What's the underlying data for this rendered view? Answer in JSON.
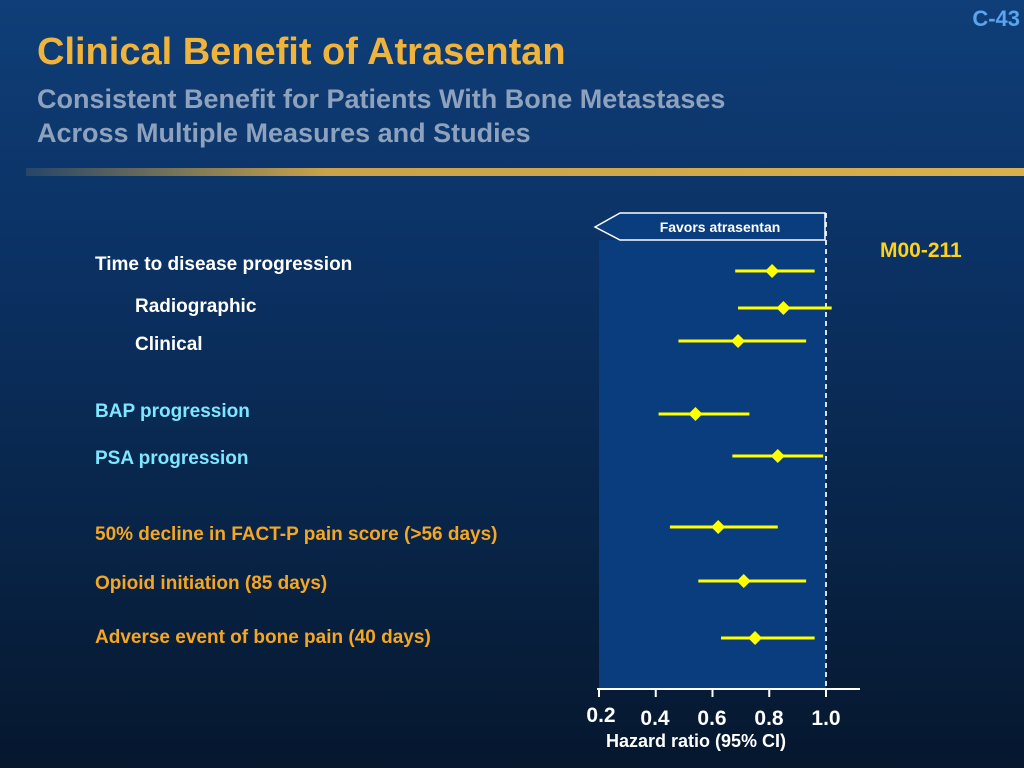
{
  "slide_number": "C-43",
  "title": "Clinical Benefit of Atrasentan",
  "subtitle_line1": "Consistent Benefit for Patients With Bone Metastases",
  "subtitle_line2": "Across Multiple Measures and Studies",
  "study_label": "M00-211",
  "favors_label": "Favors atrasentan",
  "colors": {
    "title": "#f0b43c",
    "subtitle": "#8ea2bd",
    "marker": "#ffff00",
    "study_label": "#ffd21a",
    "plot_panel": "#0a3d7e",
    "group_time_to_progression": "#ffffff",
    "group_biomarker": "#7fe6ff",
    "group_symptom": "#f5a623"
  },
  "chart_data": {
    "type": "forest",
    "title": "",
    "xlabel": "Hazard ratio (95% CI)",
    "xlim": [
      0.2,
      1.1
    ],
    "xticks": [
      0.2,
      0.4,
      0.6,
      0.8,
      1.0
    ],
    "xtick_labels": [
      "0.2",
      "0.4",
      "0.6",
      "0.8",
      "1.0"
    ],
    "reference_line": 1.0,
    "rows": [
      {
        "label": "Time to disease progression",
        "group": "time_to_progression",
        "hr": 0.81,
        "lower": 0.68,
        "upper": 0.96
      },
      {
        "label": "Radiographic",
        "group": "time_to_progression",
        "hr": 0.85,
        "lower": 0.69,
        "upper": 1.02
      },
      {
        "label": "Clinical",
        "group": "time_to_progression",
        "hr": 0.69,
        "lower": 0.48,
        "upper": 0.93
      },
      {
        "label": "BAP progression",
        "group": "biomarker",
        "hr": 0.54,
        "lower": 0.41,
        "upper": 0.73
      },
      {
        "label": "PSA progression",
        "group": "biomarker",
        "hr": 0.83,
        "lower": 0.67,
        "upper": 0.99
      },
      {
        "label": "50% decline in FACT-P pain score (>56 days)",
        "group": "symptom",
        "hr": 0.62,
        "lower": 0.45,
        "upper": 0.83
      },
      {
        "label": "Opioid initiation (85 days)",
        "group": "symptom",
        "hr": 0.71,
        "lower": 0.55,
        "upper": 0.93
      },
      {
        "label": "Adverse event of bone pain (40 days)",
        "group": "symptom",
        "hr": 0.75,
        "lower": 0.63,
        "upper": 0.96
      }
    ]
  }
}
